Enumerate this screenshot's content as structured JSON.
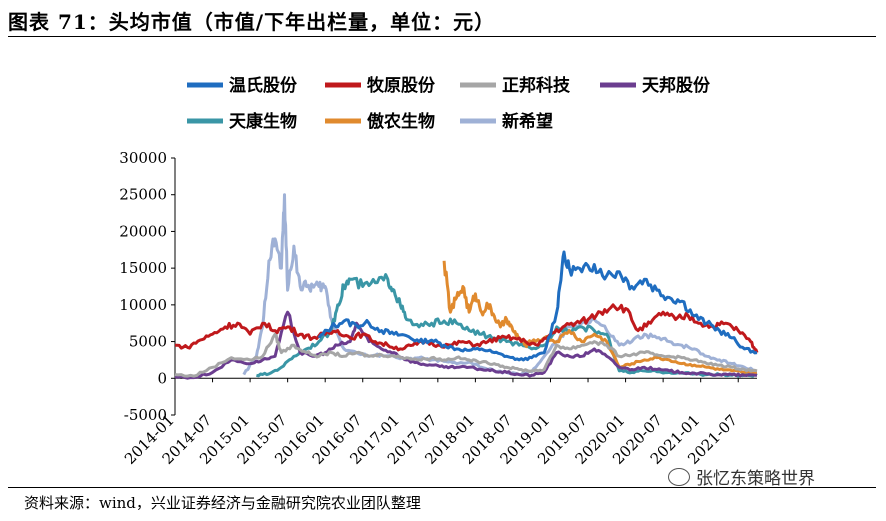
{
  "title": "图表 71：头均市值（市值/下年出栏量，单位：元）",
  "source": "资料来源：wind，兴业证券经济与金融研究院农业团队整理",
  "watermark": "张忆东策略世界",
  "chart_data": {
    "type": "line",
    "title": "头均市值（市值/下年出栏量，单位：元）",
    "xlabel": "",
    "ylabel": "",
    "ylim": [
      -5000,
      30000
    ],
    "yticks": [
      -5000,
      0,
      5000,
      10000,
      15000,
      20000,
      25000,
      30000
    ],
    "xticks": [
      "2014-01",
      "2014-07",
      "2015-01",
      "2015-07",
      "2016-01",
      "2016-07",
      "2017-01",
      "2017-07",
      "2018-01",
      "2018-07",
      "2019-01",
      "2019-07",
      "2020-01",
      "2020-07",
      "2021-01",
      "2021-07"
    ],
    "xlim_months": [
      0,
      93
    ],
    "legend": "top",
    "series": [
      {
        "name": "温氏股份",
        "color": "#1f6dc0",
        "points": [
          [
            23,
            5500
          ],
          [
            25,
            7000
          ],
          [
            27,
            7800
          ],
          [
            29,
            7200
          ],
          [
            31,
            7500
          ],
          [
            33,
            6500
          ],
          [
            35,
            6000
          ],
          [
            37,
            5800
          ],
          [
            39,
            5000
          ],
          [
            41,
            5200
          ],
          [
            43,
            4500
          ],
          [
            45,
            4000
          ],
          [
            47,
            3800
          ],
          [
            49,
            4000
          ],
          [
            51,
            3500
          ],
          [
            53,
            3000
          ],
          [
            55,
            2500
          ],
          [
            57,
            2800
          ],
          [
            59,
            3500
          ],
          [
            61,
            9000
          ],
          [
            62,
            16500
          ],
          [
            63,
            15000
          ],
          [
            65,
            14500
          ],
          [
            67,
            15500
          ],
          [
            69,
            14000
          ],
          [
            71,
            14500
          ],
          [
            73,
            12500
          ],
          [
            75,
            13500
          ],
          [
            77,
            12000
          ],
          [
            79,
            11000
          ],
          [
            81,
            10500
          ],
          [
            83,
            8500
          ],
          [
            85,
            7500
          ],
          [
            87,
            6500
          ],
          [
            89,
            5500
          ],
          [
            91,
            4000
          ],
          [
            93,
            3500
          ]
        ]
      },
      {
        "name": "牧原股份",
        "color": "#c0191c",
        "points": [
          [
            0,
            4500
          ],
          [
            2,
            4200
          ],
          [
            4,
            5200
          ],
          [
            6,
            6000
          ],
          [
            8,
            7000
          ],
          [
            10,
            7500
          ],
          [
            12,
            6000
          ],
          [
            14,
            7500
          ],
          [
            16,
            6500
          ],
          [
            18,
            7000
          ],
          [
            20,
            6000
          ],
          [
            22,
            5500
          ],
          [
            24,
            6000
          ],
          [
            26,
            6500
          ],
          [
            28,
            5500
          ],
          [
            30,
            6000
          ],
          [
            32,
            5000
          ],
          [
            34,
            4500
          ],
          [
            36,
            4000
          ],
          [
            38,
            4500
          ],
          [
            40,
            5000
          ],
          [
            42,
            4500
          ],
          [
            44,
            4500
          ],
          [
            46,
            5000
          ],
          [
            48,
            4500
          ],
          [
            50,
            5000
          ],
          [
            52,
            5500
          ],
          [
            54,
            5500
          ],
          [
            56,
            5000
          ],
          [
            58,
            4500
          ],
          [
            60,
            6000
          ],
          [
            62,
            7000
          ],
          [
            64,
            7500
          ],
          [
            66,
            8000
          ],
          [
            68,
            9000
          ],
          [
            70,
            10000
          ],
          [
            72,
            9500
          ],
          [
            74,
            6500
          ],
          [
            76,
            7500
          ],
          [
            78,
            9000
          ],
          [
            80,
            8000
          ],
          [
            82,
            8500
          ],
          [
            84,
            7500
          ],
          [
            86,
            7000
          ],
          [
            88,
            7500
          ],
          [
            90,
            6500
          ],
          [
            92,
            5000
          ],
          [
            93,
            3500
          ]
        ]
      },
      {
        "name": "正邦科技",
        "color": "#a6a6a6",
        "points": [
          [
            0,
            500
          ],
          [
            3,
            300
          ],
          [
            6,
            1500
          ],
          [
            9,
            2800
          ],
          [
            12,
            2500
          ],
          [
            14,
            3000
          ],
          [
            16,
            6000
          ],
          [
            17,
            3500
          ],
          [
            19,
            4500
          ],
          [
            21,
            3500
          ],
          [
            23,
            3000
          ],
          [
            25,
            3500
          ],
          [
            27,
            3000
          ],
          [
            29,
            3500
          ],
          [
            31,
            3000
          ],
          [
            33,
            3200
          ],
          [
            35,
            3000
          ],
          [
            37,
            2800
          ],
          [
            39,
            2500
          ],
          [
            41,
            2800
          ],
          [
            43,
            2500
          ],
          [
            45,
            2800
          ],
          [
            47,
            2500
          ],
          [
            49,
            2200
          ],
          [
            51,
            2000
          ],
          [
            53,
            1500
          ],
          [
            55,
            1200
          ],
          [
            57,
            1000
          ],
          [
            59,
            1200
          ],
          [
            61,
            4500
          ],
          [
            63,
            4000
          ],
          [
            65,
            4500
          ],
          [
            67,
            5000
          ],
          [
            69,
            4500
          ],
          [
            71,
            3000
          ],
          [
            73,
            3200
          ],
          [
            75,
            3500
          ],
          [
            77,
            3200
          ],
          [
            79,
            3000
          ],
          [
            81,
            2800
          ],
          [
            83,
            2500
          ],
          [
            85,
            2000
          ],
          [
            87,
            1800
          ],
          [
            89,
            1500
          ],
          [
            91,
            1200
          ],
          [
            93,
            1000
          ]
        ]
      },
      {
        "name": "天邦股份",
        "color": "#6b3d8f",
        "points": [
          [
            0,
            200
          ],
          [
            3,
            100
          ],
          [
            6,
            800
          ],
          [
            9,
            2500
          ],
          [
            12,
            2000
          ],
          [
            14,
            2500
          ],
          [
            16,
            3000
          ],
          [
            18,
            9000
          ],
          [
            20,
            3500
          ],
          [
            22,
            3000
          ],
          [
            24,
            3500
          ],
          [
            26,
            4500
          ],
          [
            28,
            5000
          ],
          [
            29,
            7500
          ],
          [
            31,
            5000
          ],
          [
            33,
            4000
          ],
          [
            35,
            3500
          ],
          [
            37,
            2500
          ],
          [
            39,
            2000
          ],
          [
            41,
            1800
          ],
          [
            43,
            1500
          ],
          [
            45,
            1500
          ],
          [
            47,
            1500
          ],
          [
            49,
            1200
          ],
          [
            51,
            1000
          ],
          [
            53,
            800
          ],
          [
            55,
            500
          ],
          [
            57,
            400
          ],
          [
            59,
            800
          ],
          [
            61,
            3500
          ],
          [
            63,
            3000
          ],
          [
            65,
            3000
          ],
          [
            67,
            4000
          ],
          [
            69,
            3000
          ],
          [
            71,
            1500
          ],
          [
            73,
            1200
          ],
          [
            75,
            1500
          ],
          [
            77,
            1200
          ],
          [
            79,
            1000
          ],
          [
            81,
            800
          ],
          [
            83,
            700
          ],
          [
            85,
            600
          ],
          [
            87,
            500
          ],
          [
            89,
            500
          ],
          [
            91,
            400
          ],
          [
            93,
            400
          ]
        ]
      },
      {
        "name": "天康生物",
        "color": "#3a96a6",
        "points": [
          [
            13,
            400
          ],
          [
            15,
            600
          ],
          [
            17,
            1500
          ],
          [
            19,
            3000
          ],
          [
            21,
            4000
          ],
          [
            23,
            5000
          ],
          [
            25,
            6500
          ],
          [
            26,
            10000
          ],
          [
            27,
            12500
          ],
          [
            28,
            13500
          ],
          [
            30,
            12500
          ],
          [
            32,
            13000
          ],
          [
            34,
            13500
          ],
          [
            35,
            12000
          ],
          [
            36,
            10000
          ],
          [
            37,
            8000
          ],
          [
            39,
            7000
          ],
          [
            41,
            7500
          ],
          [
            43,
            7800
          ],
          [
            45,
            7500
          ],
          [
            47,
            6500
          ],
          [
            49,
            6000
          ],
          [
            51,
            5500
          ],
          [
            53,
            5000
          ],
          [
            55,
            4500
          ],
          [
            57,
            4000
          ],
          [
            59,
            4500
          ],
          [
            61,
            7000
          ],
          [
            63,
            6500
          ],
          [
            65,
            7000
          ],
          [
            67,
            6500
          ],
          [
            69,
            6000
          ],
          [
            71,
            1000
          ],
          [
            73,
            800
          ],
          [
            75,
            1000
          ],
          [
            77,
            900
          ],
          [
            79,
            800
          ],
          [
            81,
            700
          ],
          [
            83,
            600
          ],
          [
            85,
            500
          ],
          [
            87,
            500
          ],
          [
            89,
            400
          ],
          [
            91,
            400
          ],
          [
            93,
            400
          ]
        ]
      },
      {
        "name": "傲农生物",
        "color": "#e08a2e",
        "points": [
          [
            43,
            16000
          ],
          [
            44,
            9000
          ],
          [
            45,
            11000
          ],
          [
            46,
            12500
          ],
          [
            47,
            9000
          ],
          [
            48,
            11500
          ],
          [
            49,
            9000
          ],
          [
            50,
            10000
          ],
          [
            51,
            8500
          ],
          [
            52,
            7000
          ],
          [
            53,
            8000
          ],
          [
            54,
            6500
          ],
          [
            55,
            5500
          ],
          [
            56,
            4500
          ],
          [
            57,
            5000
          ],
          [
            59,
            5500
          ],
          [
            61,
            5000
          ],
          [
            63,
            6500
          ],
          [
            65,
            5000
          ],
          [
            67,
            6000
          ],
          [
            69,
            5000
          ],
          [
            71,
            1500
          ],
          [
            73,
            2000
          ],
          [
            75,
            2500
          ],
          [
            77,
            2800
          ],
          [
            79,
            2500
          ],
          [
            81,
            2000
          ],
          [
            83,
            1800
          ],
          [
            85,
            1500
          ],
          [
            87,
            1200
          ],
          [
            89,
            1000
          ],
          [
            91,
            800
          ],
          [
            93,
            700
          ]
        ]
      },
      {
        "name": "新希望",
        "color": "#9fb1d6",
        "points": [
          [
            11,
            500
          ],
          [
            13,
            3000
          ],
          [
            14,
            7000
          ],
          [
            15,
            16000
          ],
          [
            16,
            19000
          ],
          [
            17,
            15000
          ],
          [
            17.5,
            25000
          ],
          [
            18,
            12000
          ],
          [
            19,
            18000
          ],
          [
            20,
            12500
          ],
          [
            21,
            12500
          ],
          [
            22,
            12500
          ],
          [
            23,
            12500
          ],
          [
            24,
            12500
          ],
          [
            25,
            8000
          ],
          [
            27,
            4000
          ],
          [
            29,
            3500
          ],
          [
            31,
            3000
          ],
          [
            33,
            3200
          ],
          [
            35,
            3000
          ],
          [
            37,
            2500
          ],
          [
            39,
            2800
          ],
          [
            41,
            2500
          ],
          [
            43,
            2300
          ],
          [
            45,
            2000
          ],
          [
            47,
            2200
          ],
          [
            49,
            1500
          ],
          [
            51,
            1000
          ],
          [
            53,
            800
          ],
          [
            55,
            500
          ],
          [
            57,
            900
          ],
          [
            59,
            3000
          ],
          [
            61,
            5000
          ],
          [
            63,
            7000
          ],
          [
            65,
            7500
          ],
          [
            67,
            8000
          ],
          [
            69,
            6500
          ],
          [
            71,
            4500
          ],
          [
            73,
            5000
          ],
          [
            75,
            6000
          ],
          [
            77,
            5500
          ],
          [
            79,
            5000
          ],
          [
            81,
            4500
          ],
          [
            83,
            4000
          ],
          [
            85,
            3000
          ],
          [
            87,
            2500
          ],
          [
            89,
            2000
          ],
          [
            91,
            1500
          ],
          [
            93,
            1000
          ]
        ]
      }
    ]
  }
}
